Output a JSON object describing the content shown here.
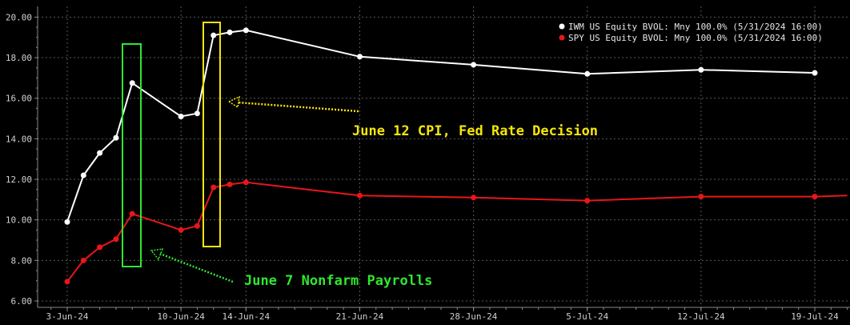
{
  "chart_data": {
    "type": "line",
    "ylim": [
      5.5,
      20.5
    ],
    "yticks": [
      "6.00",
      "8.00",
      "10.00",
      "12.00",
      "14.00",
      "16.00",
      "18.00",
      "20.00"
    ],
    "x_ticks": [
      {
        "label": "3-Jun-24",
        "day": 3
      },
      {
        "label": "10-Jun-24",
        "day": 10
      },
      {
        "label": "14-Jun-24",
        "day": 14
      },
      {
        "label": "21-Jun-24",
        "day": 21
      },
      {
        "label": "28-Jun-24",
        "day": 28
      },
      {
        "label": "5-Jul-24",
        "day": 35
      },
      {
        "label": "12-Jul-24",
        "day": 42
      },
      {
        "label": "19-Jul-24",
        "day": 49
      }
    ],
    "x_unit_note": "day = day number counted from 1-Jun-2024 (June 3 = 3, July 5 = 35)",
    "series": [
      {
        "name": "IWM US Equity BVOL: Mny 100.0% (5/31/2024 16:00)",
        "color": "#ffffff",
        "points": [
          [
            3,
            9.9
          ],
          [
            4,
            12.2
          ],
          [
            5,
            13.3
          ],
          [
            6,
            14.05
          ],
          [
            7,
            16.75
          ],
          [
            10,
            15.1
          ],
          [
            11,
            15.25
          ],
          [
            12,
            19.1
          ],
          [
            13,
            19.25
          ],
          [
            14,
            19.35
          ],
          [
            21,
            18.05
          ],
          [
            28,
            17.65
          ],
          [
            35,
            17.2
          ],
          [
            42,
            17.4
          ],
          [
            49,
            17.25
          ]
        ]
      },
      {
        "name": "SPY US Equity BVOL: Mny 100.0% (5/31/2024 16:00)",
        "color": "#e8161a",
        "points": [
          [
            3,
            6.95
          ],
          [
            4,
            8.0
          ],
          [
            5,
            8.65
          ],
          [
            6,
            9.05
          ],
          [
            7,
            10.3
          ],
          [
            10,
            9.5
          ],
          [
            11,
            9.7
          ],
          [
            12,
            11.6
          ],
          [
            13,
            11.75
          ],
          [
            14,
            11.85
          ],
          [
            21,
            11.2
          ],
          [
            28,
            11.1
          ],
          [
            35,
            10.95
          ],
          [
            42,
            11.15
          ],
          [
            49,
            11.15
          ],
          [
            51,
            11.2
          ]
        ]
      }
    ],
    "annotations": [
      {
        "text": "June 12 CPI, Fed Rate Decision",
        "color": "#f5e60a"
      },
      {
        "text": "June 7 Nonfarm Payrolls",
        "color": "#2ee72e"
      }
    ],
    "legend_position": "top-right",
    "grid": true
  }
}
